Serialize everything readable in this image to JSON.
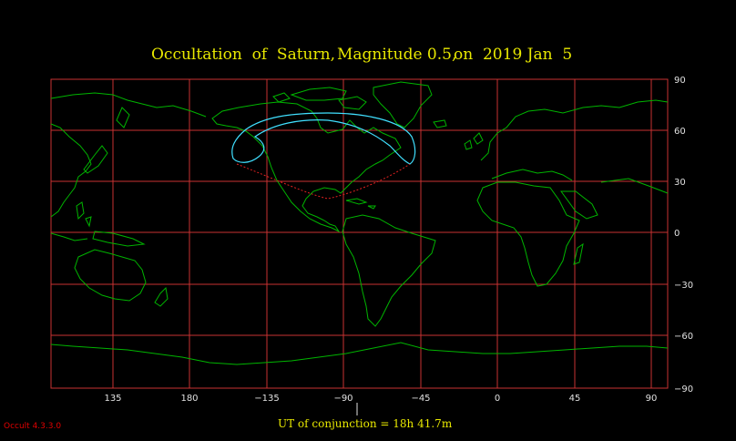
{
  "title": {
    "part1": "Occultation  of  Saturn,",
    "part2": "Magnitude 0.5,",
    "part3": "on  2019 Jan  5"
  },
  "map": {
    "lon_ticks": [
      "135",
      "180",
      "−135",
      "−90",
      "−45",
      "0",
      "45",
      "90"
    ],
    "lat_ticks": [
      "90",
      "60",
      "30",
      "0",
      "−30",
      "−60",
      "−90"
    ],
    "colors": {
      "background": "#000000",
      "grid": "#c83232",
      "coast": "#00b400",
      "visibility": "#40e0ff",
      "limit": "#e02020"
    }
  },
  "footer": {
    "ut_label": "UT of conjunction = 18h 41.7m",
    "version": "Occult 4.3.3.0"
  }
}
